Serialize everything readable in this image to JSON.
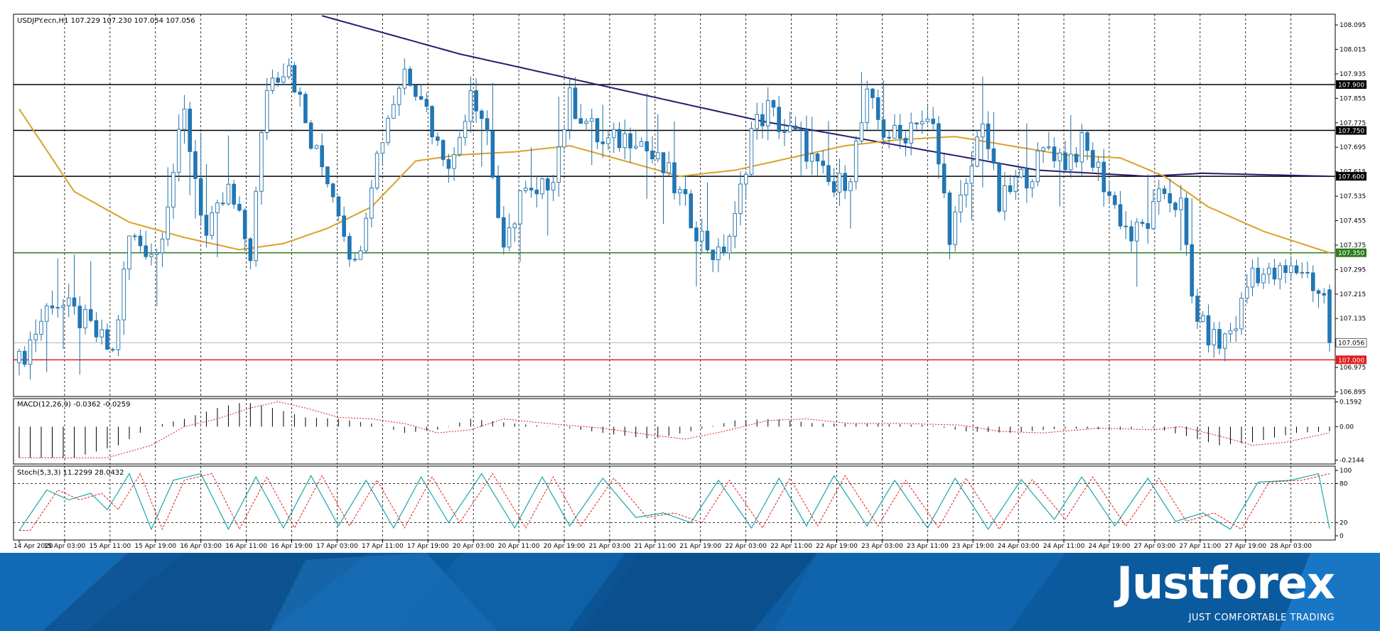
{
  "chart_data": [
    {
      "type": "candlestick",
      "panel": "price",
      "header": "USDJPY.ecn,H1  107.229 107.230 107.054 107.056",
      "y_ticks": [
        "108.095",
        "108.015",
        "107.935",
        "107.855",
        "107.775",
        "107.695",
        "107.615",
        "107.535",
        "107.455",
        "107.375",
        "107.295",
        "107.215",
        "107.135",
        "107.055",
        "106.975",
        "106.895"
      ],
      "ylim": [
        106.88,
        108.13
      ],
      "x_tick_labels": [
        "14 Apr 2020",
        "15 Apr 03:00",
        "15 Apr 11:00",
        "15 Apr 19:00",
        "16 Apr 03:00",
        "16 Apr 11:00",
        "16 Apr 19:00",
        "17 Apr 03:00",
        "17 Apr 11:00",
        "17 Apr 19:00",
        "20 Apr 03:00",
        "20 Apr 11:00",
        "20 Apr 19:00",
        "21 Apr 03:00",
        "21 Apr 11:00",
        "21 Apr 19:00",
        "22 Apr 03:00",
        "22 Apr 11:00",
        "22 Apr 19:00",
        "23 Apr 03:00",
        "23 Apr 11:00",
        "23 Apr 19:00",
        "24 Apr 03:00",
        "24 Apr 11:00",
        "24 Apr 19:00",
        "27 Apr 03:00",
        "27 Apr 11:00",
        "27 Apr 19:00",
        "28 Apr 03:00"
      ],
      "close_path": [
        [
          0,
          106.99
        ],
        [
          6,
          107.2
        ],
        [
          12,
          107.12
        ],
        [
          17,
          107.02
        ],
        [
          20,
          107.4
        ],
        [
          25,
          107.35
        ],
        [
          30,
          107.8
        ],
        [
          34,
          107.4
        ],
        [
          38,
          107.55
        ],
        [
          42,
          107.35
        ],
        [
          45,
          107.9
        ],
        [
          49,
          107.98
        ],
        [
          53,
          107.7
        ],
        [
          56,
          107.6
        ],
        [
          58,
          107.5
        ],
        [
          61,
          107.3
        ],
        [
          64,
          107.6
        ],
        [
          67,
          107.8
        ],
        [
          70,
          107.95
        ],
        [
          73,
          107.88
        ],
        [
          76,
          107.7
        ],
        [
          79,
          107.65
        ],
        [
          82,
          107.9
        ],
        [
          85,
          107.75
        ],
        [
          88,
          107.33
        ],
        [
          91,
          107.55
        ],
        [
          94,
          107.52
        ],
        [
          97,
          107.62
        ],
        [
          100,
          107.85
        ],
        [
          103,
          107.78
        ],
        [
          106,
          107.7
        ],
        [
          109,
          107.72
        ],
        [
          112,
          107.74
        ],
        [
          115,
          107.66
        ],
        [
          118,
          107.6
        ],
        [
          121,
          107.5
        ],
        [
          124,
          107.4
        ],
        [
          127,
          107.33
        ],
        [
          130,
          107.45
        ],
        [
          133,
          107.75
        ],
        [
          136,
          107.82
        ],
        [
          139,
          107.75
        ],
        [
          142,
          107.72
        ],
        [
          145,
          107.62
        ],
        [
          148,
          107.55
        ],
        [
          151,
          107.62
        ],
        [
          154,
          107.85
        ],
        [
          157,
          107.75
        ],
        [
          160,
          107.72
        ],
        [
          163,
          107.8
        ],
        [
          166,
          107.75
        ],
        [
          169,
          107.42
        ],
        [
          172,
          107.55
        ],
        [
          175,
          107.8
        ],
        [
          178,
          107.5
        ],
        [
          181,
          107.58
        ],
        [
          184,
          107.62
        ],
        [
          187,
          107.7
        ],
        [
          190,
          107.65
        ],
        [
          193,
          107.7
        ],
        [
          196,
          107.62
        ],
        [
          199,
          107.5
        ],
        [
          202,
          107.4
        ],
        [
          205,
          107.45
        ],
        [
          208,
          107.55
        ],
        [
          211,
          107.5
        ],
        [
          213,
          107.2
        ],
        [
          215,
          107.1
        ],
        [
          218,
          107.05
        ],
        [
          221,
          107.12
        ],
        [
          224,
          107.3
        ],
        [
          227,
          107.27
        ],
        [
          230,
          107.28
        ],
        [
          233,
          107.3
        ],
        [
          235,
          107.25
        ],
        [
          237,
          107.2
        ],
        [
          238,
          107.056
        ]
      ],
      "series": [
        {
          "name": "",
          "color": "#2a1a6e",
          "points": [
            [
              50,
              108.15
            ],
            [
              80,
              108.0
            ],
            [
              110,
              107.88
            ],
            [
              135,
              107.78
            ],
            [
              160,
              107.7
            ],
            [
              185,
              107.62
            ],
            [
              205,
              107.6
            ],
            [
              215,
              107.61
            ],
            [
              238,
              107.6
            ]
          ]
        },
        {
          "name": "",
          "color": "#d8a22a",
          "points": [
            [
              0,
              107.82
            ],
            [
              10,
              107.55
            ],
            [
              20,
              107.45
            ],
            [
              30,
              107.4
            ],
            [
              40,
              107.36
            ],
            [
              48,
              107.38
            ],
            [
              56,
              107.43
            ],
            [
              64,
              107.5
            ],
            [
              72,
              107.65
            ],
            [
              80,
              107.67
            ],
            [
              90,
              107.68
            ],
            [
              100,
              107.7
            ],
            [
              110,
              107.65
            ],
            [
              120,
              107.6
            ],
            [
              130,
              107.62
            ],
            [
              140,
              107.66
            ],
            [
              150,
              107.7
            ],
            [
              160,
              107.72
            ],
            [
              170,
              107.73
            ],
            [
              180,
              107.7
            ],
            [
              190,
              107.67
            ],
            [
              200,
              107.66
            ],
            [
              208,
              107.6
            ],
            [
              216,
              107.5
            ],
            [
              226,
              107.42
            ],
            [
              238,
              107.35
            ]
          ]
        }
      ],
      "levels": [
        {
          "value": 107.9,
          "label": "107.900",
          "color": "#000000"
        },
        {
          "value": 107.75,
          "label": "107.750",
          "color": "#000000"
        },
        {
          "value": 107.6,
          "label": "107.600",
          "color": "#000000"
        },
        {
          "value": 107.35,
          "label": "107.350",
          "color": "#2e7d1f"
        },
        {
          "value": 107.0,
          "label": "107.000",
          "color": "#e21b1b"
        },
        {
          "value": 107.056,
          "label": "107.056",
          "color": "#9a9a9a"
        }
      ]
    },
    {
      "type": "bar",
      "panel": "macd",
      "header": "MACD(12,26,9) -0.0362 -0.0259",
      "y_ticks": [
        "0.1592",
        "0.00",
        "-0.2144"
      ],
      "ylim": [
        -0.24,
        0.18
      ],
      "histogram_path": [
        [
          0,
          -0.2
        ],
        [
          10,
          -0.2
        ],
        [
          18,
          -0.12
        ],
        [
          24,
          0.0
        ],
        [
          30,
          0.05
        ],
        [
          36,
          0.12
        ],
        [
          41,
          0.16
        ],
        [
          46,
          0.12
        ],
        [
          52,
          0.06
        ],
        [
          58,
          0.05
        ],
        [
          64,
          0.02
        ],
        [
          70,
          -0.04
        ],
        [
          76,
          -0.02
        ],
        [
          82,
          0.05
        ],
        [
          90,
          0.02
        ],
        [
          100,
          -0.01
        ],
        [
          108,
          -0.05
        ],
        [
          115,
          -0.08
        ],
        [
          122,
          -0.03
        ],
        [
          130,
          0.04
        ],
        [
          137,
          0.05
        ],
        [
          145,
          0.02
        ],
        [
          155,
          0.02
        ],
        [
          165,
          0.01
        ],
        [
          172,
          -0.03
        ],
        [
          180,
          -0.04
        ],
        [
          190,
          -0.01
        ],
        [
          200,
          -0.02
        ],
        [
          205,
          0.0
        ],
        [
          212,
          -0.06
        ],
        [
          218,
          -0.12
        ],
        [
          224,
          -0.1
        ],
        [
          232,
          -0.04
        ],
        [
          238,
          -0.03
        ]
      ],
      "signal_color": "#e21b1b",
      "histogram_color": "#000000"
    },
    {
      "type": "line",
      "panel": "stochastic",
      "header": "Stoch(5,3,3) 11.2299 28.0432",
      "y_ticks": [
        "100",
        "80",
        "20",
        "0"
      ],
      "ylim": [
        0,
        100
      ],
      "levels": [
        80,
        20
      ],
      "main_path": [
        [
          0,
          8
        ],
        [
          5,
          70
        ],
        [
          9,
          55
        ],
        [
          13,
          65
        ],
        [
          16,
          40
        ],
        [
          20,
          95
        ],
        [
          24,
          10
        ],
        [
          28,
          85
        ],
        [
          33,
          95
        ],
        [
          38,
          10
        ],
        [
          43,
          90
        ],
        [
          48,
          12
        ],
        [
          53,
          92
        ],
        [
          58,
          15
        ],
        [
          63,
          85
        ],
        [
          68,
          12
        ],
        [
          73,
          90
        ],
        [
          78,
          20
        ],
        [
          84,
          95
        ],
        [
          90,
          12
        ],
        [
          95,
          90
        ],
        [
          100,
          15
        ],
        [
          106,
          88
        ],
        [
          112,
          28
        ],
        [
          117,
          35
        ],
        [
          122,
          20
        ],
        [
          127,
          85
        ],
        [
          133,
          12
        ],
        [
          138,
          88
        ],
        [
          143,
          15
        ],
        [
          148,
          92
        ],
        [
          154,
          15
        ],
        [
          159,
          85
        ],
        [
          165,
          12
        ],
        [
          170,
          88
        ],
        [
          176,
          10
        ],
        [
          182,
          86
        ],
        [
          188,
          25
        ],
        [
          193,
          90
        ],
        [
          199,
          15
        ],
        [
          205,
          88
        ],
        [
          210,
          22
        ],
        [
          215,
          35
        ],
        [
          220,
          10
        ],
        [
          225,
          82
        ],
        [
          231,
          85
        ],
        [
          236,
          95
        ],
        [
          238,
          11
        ]
      ],
      "signal_color": "#e21b1b",
      "main_color": "#1aa7a7"
    }
  ],
  "brand": {
    "logo": "Justforex",
    "tagline": "JUST COMFORTABLE TRADING",
    "band_color": "#0b5a9e",
    "accent_color": "#1a79c9"
  }
}
